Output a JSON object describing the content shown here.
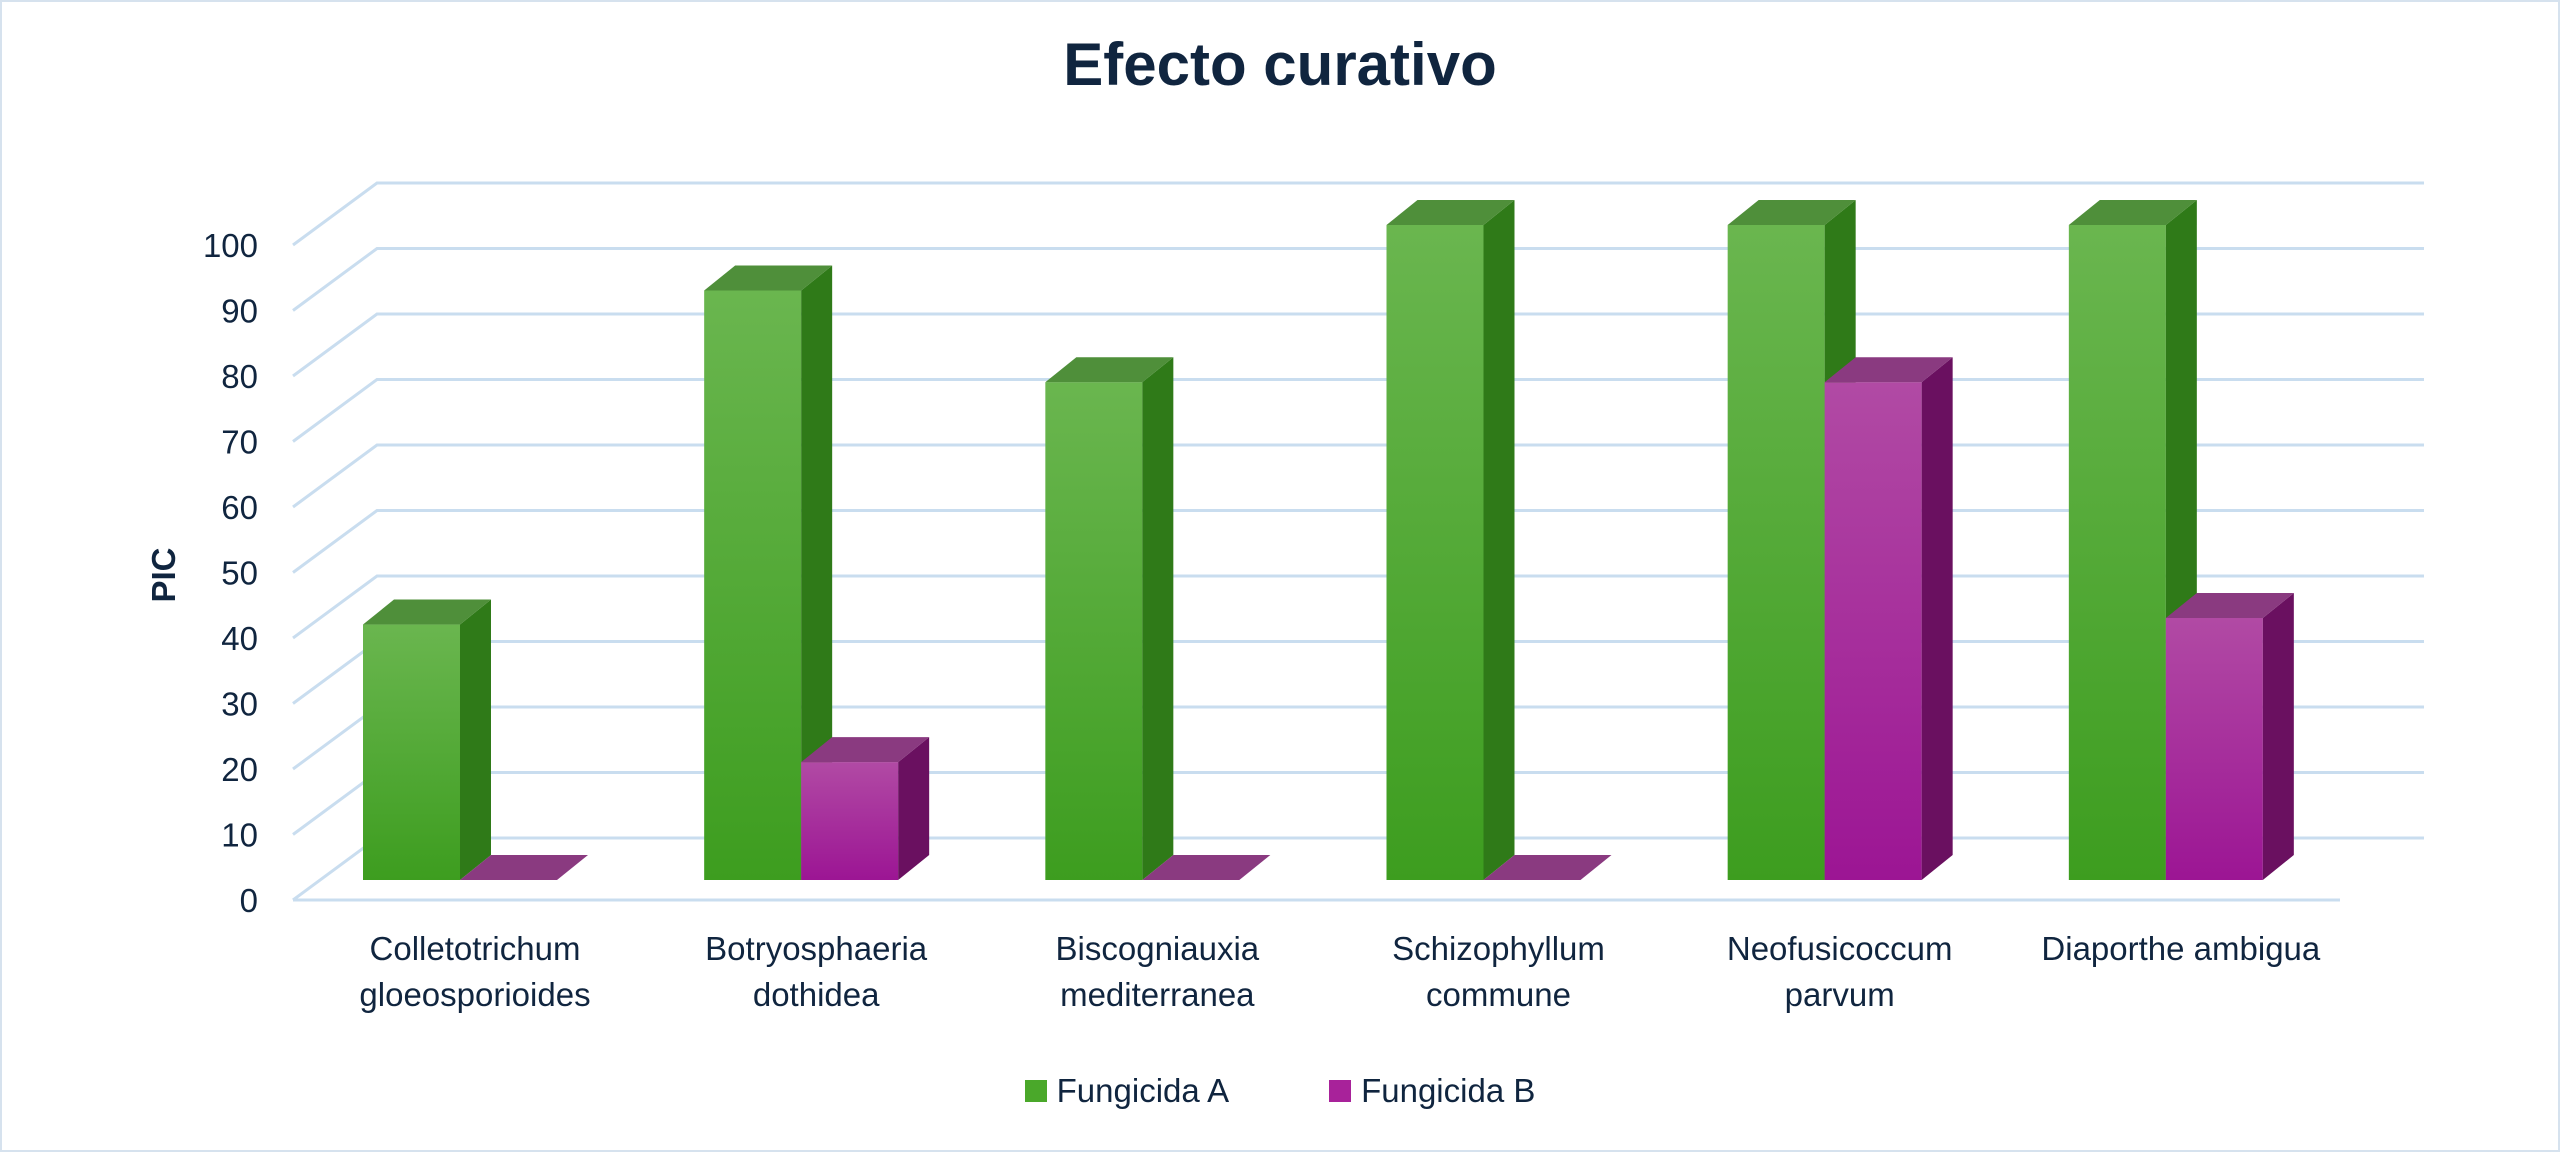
{
  "chart_data": {
    "type": "bar",
    "title": "Efecto curativo",
    "xlabel": "",
    "ylabel": "PIC",
    "ylim": [
      0,
      100
    ],
    "yticks": [
      0,
      10,
      20,
      30,
      40,
      50,
      60,
      70,
      80,
      90,
      100
    ],
    "grid": true,
    "legend_position": "bottom",
    "categories": [
      [
        "Colletotrichum",
        "gloeosporioides"
      ],
      [
        "Botryosphaeria",
        "dothidea"
      ],
      [
        "Biscogniauxia",
        "mediterranea"
      ],
      [
        "Schizophyllum",
        "commune"
      ],
      [
        "Neofusicoccum",
        "parvum"
      ],
      [
        "Diaporthe ambigua"
      ]
    ],
    "series": [
      {
        "name": "Fungicida A",
        "color": "#4aa82a",
        "values": [
          39,
          90,
          76,
          100,
          100,
          100
        ]
      },
      {
        "name": "Fungicida B",
        "color": "#a8229a",
        "values": [
          0,
          18,
          0,
          0,
          76,
          40
        ]
      }
    ]
  }
}
